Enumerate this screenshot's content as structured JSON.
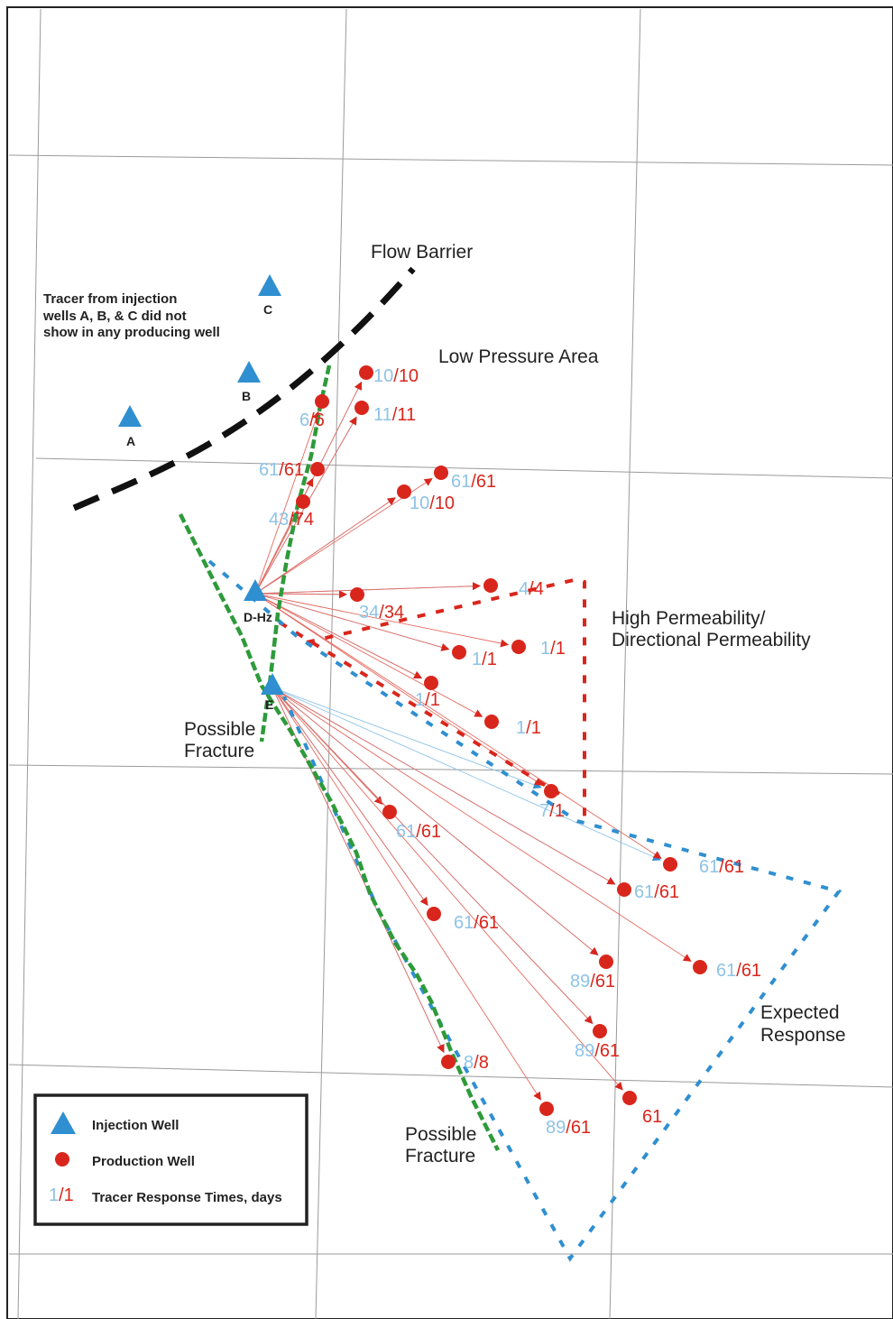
{
  "colors": {
    "injection": "#2f8fd0",
    "production": "#d9261c",
    "blue_time": "#8ec3e6",
    "red_time": "#d9261c",
    "barrier": "#111111",
    "fracture": "#2e9a3a",
    "grid": "#9a9a9a"
  },
  "labels": {
    "flow_barrier": "Flow Barrier",
    "low_pressure": "Low Pressure Area",
    "note_line1": "Tracer from injection",
    "note_line2": "wells A, B, & C did not",
    "note_line3": "show in any producing well",
    "high_perm_line1": "High Permeability/",
    "high_perm_line2": "Directional Permeability",
    "fracture_1_line1": "Possible",
    "fracture_1_line2": "Fracture",
    "fracture_2_line1": "Possible",
    "fracture_2_line2": "Fracture",
    "expected_line1": "Expected",
    "expected_line2": "Response"
  },
  "injection_wells": [
    "A",
    "B",
    "C",
    "D-Hz",
    "E"
  ],
  "tracer_times": [
    {
      "blue": "10",
      "red": "10"
    },
    {
      "blue": "11",
      "red": "11"
    },
    {
      "blue": "6",
      "red": "6"
    },
    {
      "blue": "61",
      "red": "61"
    },
    {
      "blue": "61",
      "red": "61"
    },
    {
      "blue": "10",
      "red": "10"
    },
    {
      "blue": "43",
      "red": "74"
    },
    {
      "blue": "34",
      "red": "34"
    },
    {
      "blue": "4",
      "red": "4"
    },
    {
      "blue": "1",
      "red": "1"
    },
    {
      "blue": "1",
      "red": "1"
    },
    {
      "blue": "1",
      "red": "1"
    },
    {
      "blue": "1",
      "red": "1"
    },
    {
      "blue": "7",
      "red": "1"
    },
    {
      "blue": "61",
      "red": "61"
    },
    {
      "blue": "61",
      "red": "61"
    },
    {
      "blue": "61",
      "red": "61"
    },
    {
      "blue": "61",
      "red": "61"
    },
    {
      "blue": "61",
      "red": "61"
    },
    {
      "blue": "89",
      "red": "61"
    },
    {
      "blue": "89",
      "red": "61"
    },
    {
      "blue": "8",
      "red": "8"
    },
    {
      "blue": "89",
      "red": "61"
    },
    {
      "blue": "",
      "red": "61"
    }
  ],
  "legend": {
    "injection": "Injection Well",
    "production": "Production Well",
    "sample_blue": "1",
    "sample_red": "/1",
    "tracer": "Tracer Response Times, days"
  }
}
